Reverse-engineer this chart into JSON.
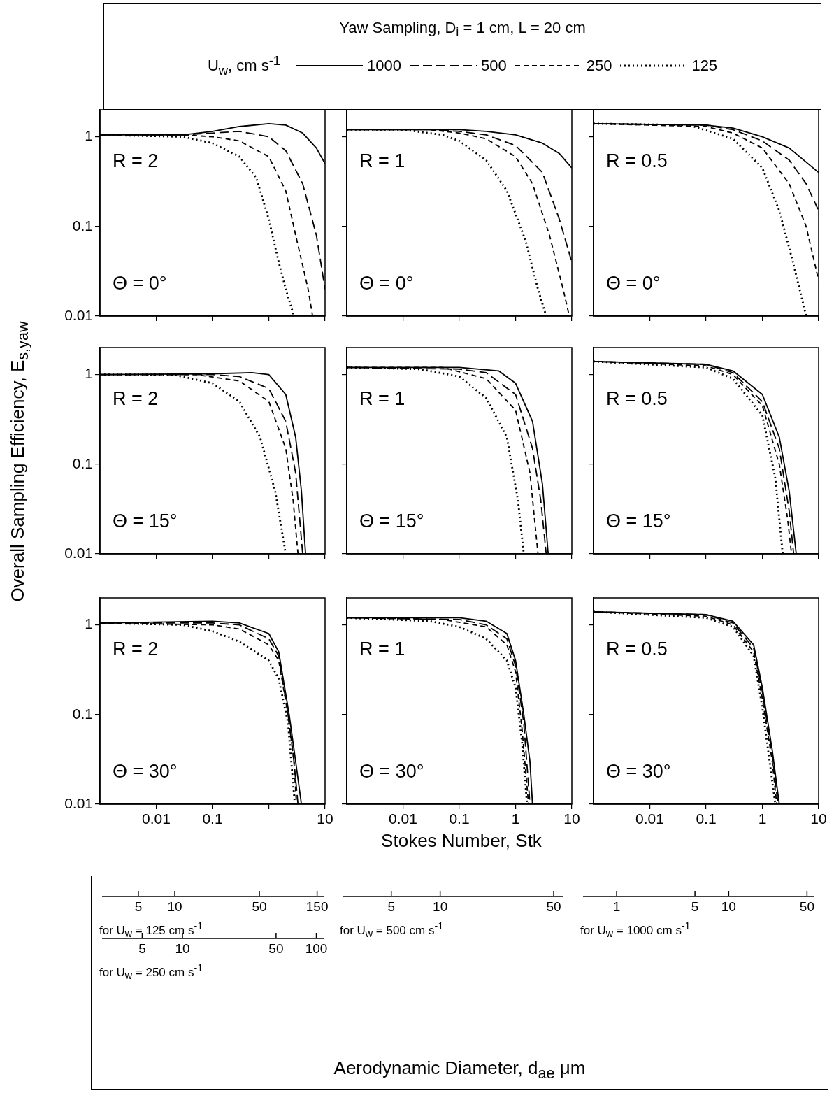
{
  "chart_data": [
    {
      "type": "other",
      "title": "Yaw Sampling, D$_{i}$ = 1 cm, L = 20 cm"
    },
    {
      "type": "line",
      "legend": "top",
      "legend_title": "U$_{w}$, cm s$^{-1}$",
      "log": "xy",
      "xlim": [
        0.001,
        10
      ],
      "ylim": [
        0.01,
        2
      ],
      "xticks": [
        0.01,
        0.1,
        1,
        10
      ],
      "yticks": [
        0.01,
        0.1,
        1
      ],
      "tick_labels": "y",
      "annotations": [
        "R = 2",
        "Θ = 0°"
      ],
      "series": [
        {
          "name": "1000",
          "color": "#000000",
          "line_style": "solid",
          "x": [
            0.001,
            0.03,
            0.1,
            0.3,
            1,
            2,
            4,
            7,
            10
          ],
          "values": [
            1.05,
            1.05,
            1.15,
            1.3,
            1.4,
            1.35,
            1.1,
            0.75,
            0.5
          ]
        },
        {
          "name": "500",
          "color": "#000000",
          "line_style": "dashed",
          "x": [
            0.001,
            0.03,
            0.1,
            0.3,
            1,
            2,
            4,
            7,
            10
          ],
          "values": [
            1.05,
            1.05,
            1.1,
            1.15,
            1.0,
            0.7,
            0.3,
            0.08,
            0.02
          ]
        },
        {
          "name": "250",
          "color": "#000000",
          "line_style": "dashed",
          "x": [
            0.001,
            0.03,
            0.1,
            0.3,
            1,
            2,
            3,
            5,
            6
          ],
          "values": [
            1.05,
            1.05,
            1.0,
            0.9,
            0.6,
            0.25,
            0.08,
            0.02,
            0.01
          ]
        },
        {
          "name": "125",
          "color": "#000000",
          "line_style": "dotted",
          "x": [
            0.001,
            0.03,
            0.1,
            0.3,
            0.6,
            1,
            1.5,
            2,
            2.8
          ],
          "values": [
            1.05,
            1.0,
            0.85,
            0.6,
            0.35,
            0.12,
            0.04,
            0.02,
            0.01
          ]
        }
      ]
    },
    {
      "type": "line",
      "log": "xy",
      "xlim": [
        0.001,
        10
      ],
      "ylim": [
        0.01,
        2
      ],
      "xticks": [
        0.01,
        0.1,
        1,
        10
      ],
      "yticks": [
        0.01,
        0.1,
        1
      ],
      "tick_labels": false,
      "annotations": [
        "R = 1",
        "Θ = 0°"
      ],
      "series": [
        {
          "color": "#000000",
          "line_style": "solid",
          "x": [
            0.001,
            0.1,
            0.3,
            1,
            3,
            6,
            10
          ],
          "values": [
            1.2,
            1.2,
            1.15,
            1.05,
            0.85,
            0.65,
            0.45
          ]
        },
        {
          "color": "#000000",
          "line_style": "dashed",
          "x": [
            0.001,
            0.03,
            0.1,
            0.3,
            1,
            3,
            6,
            10
          ],
          "values": [
            1.2,
            1.2,
            1.15,
            1.05,
            0.8,
            0.4,
            0.12,
            0.04
          ]
        },
        {
          "color": "#000000",
          "line_style": "dashed",
          "x": [
            0.001,
            0.03,
            0.1,
            0.3,
            1,
            2,
            4,
            7,
            9
          ],
          "values": [
            1.2,
            1.2,
            1.1,
            0.95,
            0.6,
            0.3,
            0.08,
            0.02,
            0.01
          ]
        },
        {
          "color": "#000000",
          "line_style": "dotted",
          "x": [
            0.001,
            0.01,
            0.05,
            0.1,
            0.3,
            0.7,
            1.5,
            2.5,
            3.5
          ],
          "values": [
            1.2,
            1.2,
            1.05,
            0.9,
            0.55,
            0.25,
            0.07,
            0.02,
            0.01
          ]
        }
      ]
    },
    {
      "type": "line",
      "log": "xy",
      "xlim": [
        0.001,
        10
      ],
      "ylim": [
        0.01,
        2
      ],
      "xticks": [
        0.01,
        0.1,
        1,
        10
      ],
      "yticks": [
        0.01,
        0.1,
        1
      ],
      "tick_labels": false,
      "annotations": [
        "R = 0.5",
        "Θ = 0°"
      ],
      "series": [
        {
          "color": "#000000",
          "line_style": "solid",
          "x": [
            0.001,
            0.1,
            0.3,
            1,
            3,
            10
          ],
          "values": [
            1.4,
            1.35,
            1.25,
            1.0,
            0.75,
            0.4
          ]
        },
        {
          "color": "#000000",
          "line_style": "dashed",
          "x": [
            0.001,
            0.1,
            0.3,
            1,
            3,
            6,
            10
          ],
          "values": [
            1.4,
            1.35,
            1.2,
            0.9,
            0.55,
            0.3,
            0.15
          ]
        },
        {
          "color": "#000000",
          "line_style": "dashed",
          "x": [
            0.001,
            0.1,
            0.3,
            1,
            3,
            6,
            10
          ],
          "values": [
            1.4,
            1.3,
            1.1,
            0.75,
            0.3,
            0.1,
            0.025
          ]
        },
        {
          "color": "#000000",
          "line_style": "dotted",
          "x": [
            0.001,
            0.05,
            0.3,
            1,
            2,
            3.5,
            6
          ],
          "values": [
            1.4,
            1.35,
            0.95,
            0.45,
            0.15,
            0.04,
            0.01
          ]
        }
      ]
    },
    {
      "type": "line",
      "ylabel": "Overall Sampling Efficiency, E$_{s,yaw}$",
      "log": "xy",
      "xlim": [
        0.001,
        10
      ],
      "ylim": [
        0.01,
        2
      ],
      "xticks": [
        0.01,
        0.1,
        1,
        10
      ],
      "yticks": [
        0.01,
        0.1,
        1
      ],
      "tick_labels": "y",
      "annotations": [
        "R = 2",
        "Θ = 15°"
      ],
      "series": [
        {
          "color": "#000000",
          "line_style": "solid",
          "x": [
            0.001,
            0.1,
            0.5,
            1,
            2,
            3,
            3.8,
            4.5
          ],
          "values": [
            1.0,
            1.02,
            1.05,
            1.0,
            0.6,
            0.2,
            0.05,
            0.01
          ]
        },
        {
          "color": "#000000",
          "line_style": "dashed",
          "x": [
            0.001,
            0.1,
            0.3,
            1,
            2,
            3,
            4
          ],
          "values": [
            1.0,
            1.0,
            0.95,
            0.7,
            0.3,
            0.08,
            0.01
          ]
        },
        {
          "color": "#000000",
          "line_style": "dashed",
          "x": [
            0.001,
            0.05,
            0.3,
            1,
            2,
            2.7,
            3.3
          ],
          "values": [
            1.0,
            1.0,
            0.85,
            0.5,
            0.15,
            0.04,
            0.01
          ]
        },
        {
          "color": "#000000",
          "line_style": "dotted",
          "x": [
            0.001,
            0.02,
            0.1,
            0.3,
            0.7,
            1.3,
            2
          ],
          "values": [
            1.0,
            1.0,
            0.8,
            0.5,
            0.2,
            0.05,
            0.01
          ]
        }
      ]
    },
    {
      "type": "line",
      "log": "xy",
      "xlim": [
        0.001,
        10
      ],
      "ylim": [
        0.01,
        2
      ],
      "xticks": [
        0.01,
        0.1,
        1,
        10
      ],
      "yticks": [
        0.01,
        0.1,
        1
      ],
      "tick_labels": false,
      "annotations": [
        "R = 1",
        "Θ = 15°"
      ],
      "series": [
        {
          "color": "#000000",
          "line_style": "solid",
          "x": [
            0.001,
            0.1,
            0.5,
            1,
            2,
            3,
            3.8
          ],
          "values": [
            1.2,
            1.2,
            1.1,
            0.8,
            0.3,
            0.06,
            0.01
          ]
        },
        {
          "color": "#000000",
          "line_style": "dashed",
          "x": [
            0.001,
            0.1,
            0.3,
            1,
            2,
            2.8,
            3.5
          ],
          "values": [
            1.2,
            1.15,
            1.05,
            0.6,
            0.15,
            0.04,
            0.01
          ]
        },
        {
          "color": "#000000",
          "line_style": "dashed",
          "x": [
            0.001,
            0.05,
            0.3,
            1,
            1.8,
            2.5
          ],
          "values": [
            1.2,
            1.2,
            0.9,
            0.4,
            0.08,
            0.01
          ]
        },
        {
          "color": "#000000",
          "line_style": "dotted",
          "x": [
            0.001,
            0.02,
            0.1,
            0.3,
            0.7,
            1.1,
            1.4
          ],
          "values": [
            1.2,
            1.15,
            0.95,
            0.55,
            0.2,
            0.04,
            0.01
          ]
        }
      ]
    },
    {
      "type": "line",
      "log": "xy",
      "xlim": [
        0.001,
        10
      ],
      "ylim": [
        0.01,
        2
      ],
      "xticks": [
        0.01,
        0.1,
        1,
        10
      ],
      "yticks": [
        0.01,
        0.1,
        1
      ],
      "tick_labels": false,
      "annotations": [
        "R = 0.5",
        "Θ = 15°"
      ],
      "series": [
        {
          "color": "#000000",
          "line_style": "solid",
          "x": [
            0.001,
            0.1,
            0.3,
            1,
            2,
            3,
            4
          ],
          "values": [
            1.4,
            1.3,
            1.1,
            0.6,
            0.2,
            0.05,
            0.01
          ]
        },
        {
          "color": "#000000",
          "line_style": "dashed",
          "x": [
            0.001,
            0.1,
            0.3,
            1,
            2,
            3,
            3.6
          ],
          "values": [
            1.4,
            1.3,
            1.05,
            0.5,
            0.15,
            0.03,
            0.01
          ]
        },
        {
          "color": "#000000",
          "line_style": "dashed",
          "x": [
            0.001,
            0.1,
            0.3,
            1,
            2,
            2.8,
            3.3
          ],
          "values": [
            1.4,
            1.25,
            1.0,
            0.45,
            0.1,
            0.025,
            0.01
          ]
        },
        {
          "color": "#000000",
          "line_style": "dotted",
          "x": [
            0.001,
            0.1,
            0.3,
            1,
            1.7,
            2.3
          ],
          "values": [
            1.4,
            1.2,
            0.9,
            0.35,
            0.07,
            0.01
          ]
        }
      ]
    },
    {
      "type": "line",
      "log": "xy",
      "xlim": [
        0.001,
        10
      ],
      "ylim": [
        0.01,
        2
      ],
      "xticks": [
        0.01,
        0.1,
        {
          "value": 1,
          "label": null
        },
        10
      ],
      "yticks": [
        0.01,
        0.1,
        1
      ],
      "annotations": [
        "R = 2",
        "Θ = 30°"
      ],
      "series": [
        {
          "color": "#000000",
          "line_style": "solid",
          "x": [
            0.001,
            0.1,
            0.3,
            1,
            1.5,
            2.3,
            3,
            3.8
          ],
          "values": [
            1.05,
            1.1,
            1.05,
            0.8,
            0.5,
            0.1,
            0.03,
            0.01
          ]
        },
        {
          "color": "#000000",
          "line_style": "dashed",
          "x": [
            0.001,
            0.1,
            0.3,
            1,
            1.5,
            2.2,
            2.8,
            3.3
          ],
          "values": [
            1.05,
            1.05,
            1.0,
            0.7,
            0.45,
            0.1,
            0.03,
            0.01
          ]
        },
        {
          "color": "#000000",
          "line_style": "dashed",
          "x": [
            0.001,
            0.1,
            0.3,
            1,
            1.5,
            2.2,
            2.8,
            3.1
          ],
          "values": [
            1.05,
            1.0,
            0.9,
            0.6,
            0.4,
            0.1,
            0.03,
            0.01
          ]
        },
        {
          "color": "#000000",
          "line_style": "dotted",
          "x": [
            0.001,
            0.03,
            0.1,
            0.3,
            1,
            1.5,
            2.2,
            2.9
          ],
          "values": [
            1.05,
            1.0,
            0.85,
            0.65,
            0.4,
            0.25,
            0.08,
            0.01
          ]
        }
      ]
    },
    {
      "type": "line",
      "xlabel": "Stokes Number, Stk",
      "log": "xy",
      "xlim": [
        0.001,
        10
      ],
      "ylim": [
        0.01,
        2
      ],
      "xticks": [
        0.01,
        0.1,
        1,
        10
      ],
      "yticks": [
        0.01,
        0.1,
        1
      ],
      "tick_labels": "x",
      "annotations": [
        "R = 1",
        "Θ = 30°"
      ],
      "series": [
        {
          "color": "#000000",
          "line_style": "solid",
          "x": [
            0.001,
            0.1,
            0.3,
            0.7,
            1,
            1.4,
            1.8,
            2
          ],
          "values": [
            1.2,
            1.2,
            1.1,
            0.8,
            0.4,
            0.1,
            0.03,
            0.01
          ]
        },
        {
          "color": "#000000",
          "line_style": "dashed",
          "x": [
            0.001,
            0.1,
            0.3,
            0.7,
            1,
            1.4,
            1.8
          ],
          "values": [
            1.2,
            1.15,
            1.0,
            0.7,
            0.35,
            0.08,
            0.01
          ]
        },
        {
          "color": "#000000",
          "line_style": "dashed",
          "x": [
            0.001,
            0.05,
            0.3,
            0.7,
            1,
            1.3,
            1.7
          ],
          "values": [
            1.2,
            1.15,
            0.95,
            0.6,
            0.3,
            0.07,
            0.01
          ]
        },
        {
          "color": "#000000",
          "line_style": "dotted",
          "x": [
            0.001,
            0.03,
            0.1,
            0.3,
            0.7,
            1,
            1.3,
            1.6
          ],
          "values": [
            1.2,
            1.1,
            0.95,
            0.7,
            0.4,
            0.2,
            0.05,
            0.01
          ]
        }
      ]
    },
    {
      "type": "line",
      "log": "xy",
      "xlim": [
        0.001,
        10
      ],
      "ylim": [
        0.01,
        2
      ],
      "xticks": [
        0.01,
        0.1,
        1,
        10
      ],
      "yticks": [
        0.01,
        0.1,
        1
      ],
      "tick_labels": "x",
      "annotations": [
        "R = 0.5",
        "Θ = 30°"
      ],
      "series": [
        {
          "color": "#000000",
          "line_style": "solid",
          "x": [
            0.001,
            0.1,
            0.3,
            0.7,
            1,
            1.5,
            2
          ],
          "values": [
            1.4,
            1.3,
            1.1,
            0.6,
            0.2,
            0.04,
            0.01
          ]
        },
        {
          "color": "#000000",
          "line_style": "dashed",
          "x": [
            0.001,
            0.1,
            0.3,
            0.7,
            1,
            1.5,
            1.9
          ],
          "values": [
            1.4,
            1.3,
            1.05,
            0.55,
            0.18,
            0.035,
            0.01
          ]
        },
        {
          "color": "#000000",
          "line_style": "dashed",
          "x": [
            0.001,
            0.1,
            0.3,
            0.7,
            1,
            1.5,
            1.8
          ],
          "values": [
            1.4,
            1.25,
            1.0,
            0.5,
            0.15,
            0.03,
            0.01
          ]
        },
        {
          "color": "#000000",
          "line_style": "dotted",
          "x": [
            0.001,
            0.1,
            0.3,
            0.7,
            1,
            1.4,
            1.7
          ],
          "values": [
            1.4,
            1.2,
            0.95,
            0.45,
            0.12,
            0.025,
            0.01
          ]
        }
      ]
    },
    {
      "type": "other",
      "xlabel": "for U$_{w}$ = 125 cm s$^{-1}$",
      "annotations": [
        "5",
        "10",
        "50",
        "150"
      ]
    },
    {
      "type": "other",
      "xlabel": "for U$_{w}$ = 500 cm s$^{-1}$",
      "annotations": [
        "5",
        "10",
        "50"
      ]
    },
    {
      "type": "other",
      "xlabel": "for U$_{w}$ = 1000 cm s$^{-1}$",
      "annotations": [
        "1",
        "5",
        "10",
        "50"
      ]
    },
    {
      "type": "other",
      "xlabel": "for U$_{w}$ = 250 cm s$^{-1}$",
      "annotations": [
        "5",
        "10",
        "50",
        "100"
      ],
      "subtitle": "Aerodynamic Diameter, d$_{ae}$ μm"
    }
  ]
}
